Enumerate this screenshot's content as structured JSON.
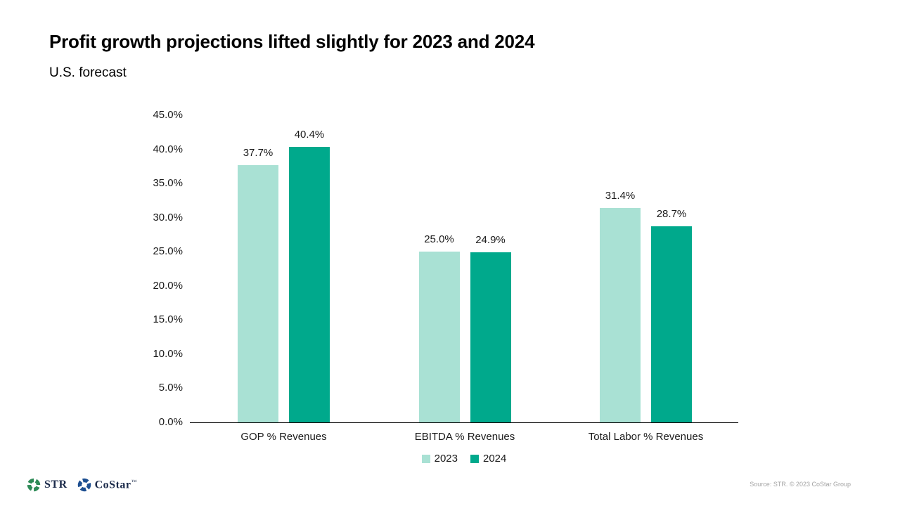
{
  "slide": {
    "title": "Profit growth projections lifted slightly for 2023 and 2024",
    "subtitle": "U.S. forecast",
    "source_note": "Source: STR. © 2023 CoStar Group",
    "logos": {
      "str_label": "STR",
      "costar_label": "CoStar",
      "costar_tm": "™",
      "str_icon_color": "#2e8b57",
      "costar_icon_color": "#1d4f91"
    }
  },
  "chart_data": {
    "type": "bar",
    "title": "Profit growth projections lifted slightly for 2023 and 2024",
    "subtitle": "U.S. forecast",
    "categories": [
      "GOP % Revenues",
      "EBITDA % Revenues",
      "Total Labor % Revenues"
    ],
    "series": [
      {
        "name": "2023",
        "color": "#a9e1d4",
        "values": [
          37.7,
          25.0,
          31.4
        ],
        "value_labels": [
          "37.7%",
          "25.0%",
          "31.4%"
        ]
      },
      {
        "name": "2024",
        "color": "#00a98c",
        "values": [
          40.4,
          24.9,
          28.7
        ],
        "value_labels": [
          "40.4%",
          "24.9%",
          "28.7%"
        ]
      }
    ],
    "ylim": [
      0,
      45
    ],
    "y_ticks": [
      "45.0%",
      "40.0%",
      "35.0%",
      "30.0%",
      "25.0%",
      "20.0%",
      "15.0%",
      "10.0%",
      "5.0%",
      "0.0%"
    ],
    "y_tick_values": [
      45,
      40,
      35,
      30,
      25,
      20,
      15,
      10,
      5,
      0
    ],
    "grid": false,
    "legend_position": "bottom",
    "xlabel": "",
    "ylabel": ""
  }
}
